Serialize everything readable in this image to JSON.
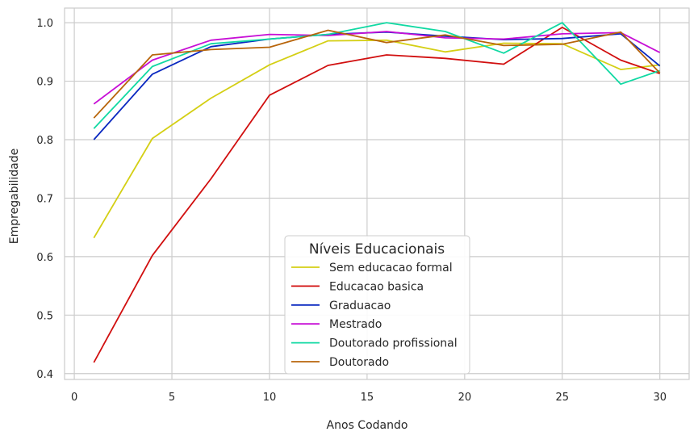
{
  "chart_data": {
    "type": "line",
    "xlabel": "Anos Codando",
    "ylabel": "Empregabilidade",
    "xlim": [
      -0.5,
      31.5
    ],
    "ylim": [
      0.39,
      1.025
    ],
    "xticks": [
      0,
      5,
      10,
      15,
      20,
      25,
      30
    ],
    "yticks": [
      0.4,
      0.5,
      0.6,
      0.7,
      0.8,
      0.9,
      1.0
    ],
    "xtick_labels": [
      "0",
      "5",
      "10",
      "15",
      "20",
      "25",
      "30"
    ],
    "ytick_labels": [
      "0.4",
      "0.5",
      "0.6",
      "0.7",
      "0.8",
      "0.9",
      "1.0"
    ],
    "grid": true,
    "legend": {
      "title": "Níveis Educacionais",
      "placement": "lower-center"
    },
    "x": [
      1,
      4,
      7,
      10,
      13,
      16,
      19,
      22,
      25,
      28,
      30
    ],
    "series": [
      {
        "name": "Sem educacao formal",
        "color": "#d4cf14",
        "values": [
          0.632,
          0.802,
          0.871,
          0.928,
          0.969,
          0.97,
          0.95,
          0.965,
          0.964,
          0.92,
          0.928
        ]
      },
      {
        "name": "Educacao basica",
        "color": "#d10f0f",
        "values": [
          0.419,
          0.602,
          0.733,
          0.876,
          0.927,
          0.945,
          0.939,
          0.929,
          0.992,
          0.936,
          0.913
        ]
      },
      {
        "name": "Graduacao",
        "color": "#0a28c0",
        "values": [
          0.8,
          0.912,
          0.959,
          0.972,
          0.98,
          0.984,
          0.977,
          0.971,
          0.973,
          0.981,
          0.926
        ]
      },
      {
        "name": "Mestrado",
        "color": "#c70fd6",
        "values": [
          0.861,
          0.936,
          0.97,
          0.98,
          0.978,
          0.985,
          0.974,
          0.972,
          0.981,
          0.983,
          0.949
        ]
      },
      {
        "name": "Doutorado profissional",
        "color": "#11d9a3",
        "values": [
          0.819,
          0.925,
          0.964,
          0.972,
          0.98,
          1.0,
          0.985,
          0.948,
          1.0,
          0.895,
          0.918
        ]
      },
      {
        "name": "Doutorado",
        "color": "#b8650b",
        "values": [
          0.837,
          0.945,
          0.954,
          0.958,
          0.987,
          0.966,
          0.979,
          0.961,
          0.963,
          0.984,
          0.914
        ]
      }
    ]
  }
}
